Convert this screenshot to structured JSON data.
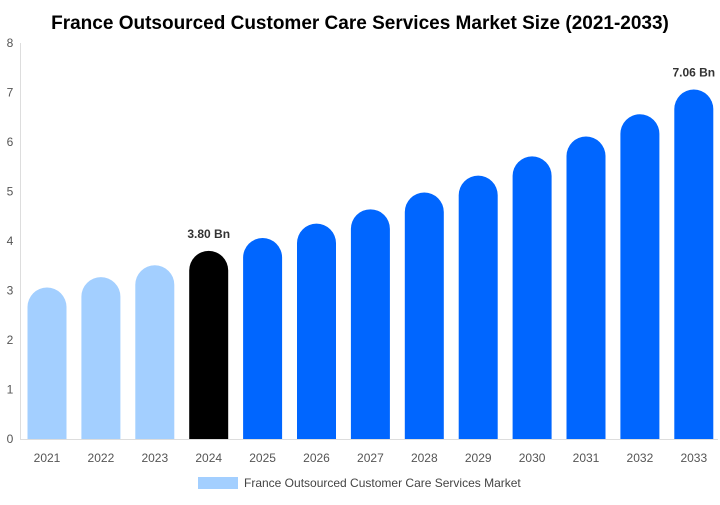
{
  "chart_data": {
    "type": "bar",
    "title": "France Outsourced Customer Care Services Market Size (2021-2033)",
    "categories": [
      "2021",
      "2022",
      "2023",
      "2024",
      "2025",
      "2026",
      "2027",
      "2028",
      "2029",
      "2030",
      "2031",
      "2032",
      "2033"
    ],
    "series": [
      {
        "name": "France Outsourced Customer Care Services Market",
        "values": [
          3.06,
          3.27,
          3.51,
          3.8,
          4.06,
          4.35,
          4.64,
          4.98,
          5.32,
          5.71,
          6.11,
          6.56,
          7.06
        ]
      }
    ],
    "data_labels": {
      "3": "3.80 Bn",
      "12": "7.06 Bn"
    },
    "ylim": [
      0,
      8
    ],
    "yticks": [
      0,
      1,
      2,
      3,
      4,
      5,
      6,
      7,
      8
    ],
    "grid": false,
    "legend_position": "bottom",
    "colors": {
      "historical": "#a3cfff",
      "current": "#000000",
      "forecast": "#0066ff",
      "legend": "#a3cfff"
    },
    "bar_color_groups": [
      "historical",
      "historical",
      "historical",
      "current",
      "forecast",
      "forecast",
      "forecast",
      "forecast",
      "forecast",
      "forecast",
      "forecast",
      "forecast",
      "forecast"
    ]
  }
}
